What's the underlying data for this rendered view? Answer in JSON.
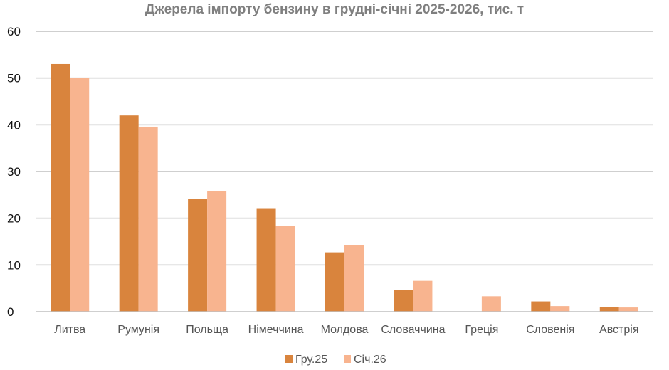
{
  "chart_data": {
    "type": "bar",
    "title": "Джерела імпорту бензину в грудні-січні 2025-2026, тис. т",
    "xlabel": "",
    "ylabel": "",
    "ylim": [
      0,
      60
    ],
    "yticks": [
      0,
      10,
      20,
      30,
      40,
      50,
      60
    ],
    "grid": true,
    "legend_position": "bottom",
    "categories": [
      "Литва",
      "Румунія",
      "Польща",
      "Німеччина",
      "Молдова",
      "Словаччина",
      "Греція",
      "Словенія",
      "Австрія"
    ],
    "series": [
      {
        "name": "Гру.25",
        "color": "#d9843d",
        "values": [
          53,
          42,
          24.1,
          22,
          12.7,
          4.6,
          0,
          2.2,
          1
        ]
      },
      {
        "name": "Січ.26",
        "color": "#f8b48f",
        "values": [
          50,
          39.6,
          25.8,
          18.3,
          14.2,
          6.6,
          3.3,
          1.2,
          0.9
        ]
      }
    ]
  }
}
